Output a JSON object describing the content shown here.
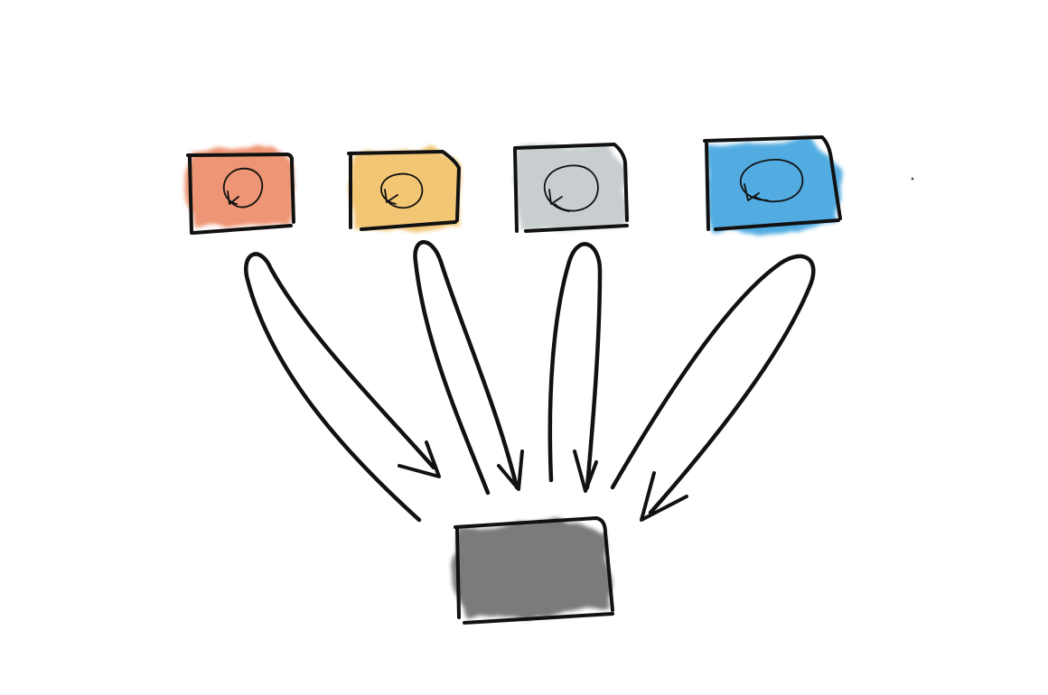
{
  "diagram": {
    "sources": [
      {
        "id": "source-1",
        "color": "#ec8a66",
        "icon": "refresh-icon"
      },
      {
        "id": "source-2",
        "color": "#f2c066",
        "icon": "refresh-icon"
      },
      {
        "id": "source-3",
        "color": "#c3c9cb",
        "icon": "refresh-icon"
      },
      {
        "id": "source-4",
        "color": "#3fa4de",
        "icon": "refresh-icon"
      }
    ],
    "target": {
      "id": "target",
      "color": "#6f6f70"
    },
    "arrows": [
      {
        "from": "source-1",
        "to": "target"
      },
      {
        "from": "source-2",
        "to": "target"
      },
      {
        "from": "source-3",
        "to": "target"
      },
      {
        "from": "source-4",
        "to": "target"
      }
    ]
  }
}
